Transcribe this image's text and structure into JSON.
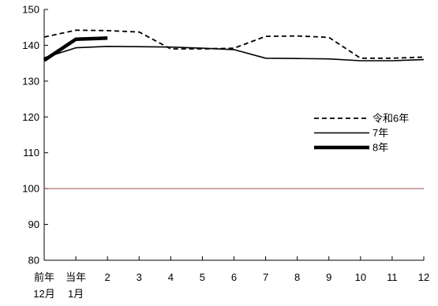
{
  "chart_data": {
    "type": "line",
    "title": "",
    "xlabel": "",
    "ylabel": "",
    "categories": [
      {
        "top": "前年",
        "bottom": "12月"
      },
      {
        "top": "当年",
        "bottom": "1月"
      },
      {
        "top": "2",
        "bottom": ""
      },
      {
        "top": "3",
        "bottom": ""
      },
      {
        "top": "4",
        "bottom": ""
      },
      {
        "top": "5",
        "bottom": ""
      },
      {
        "top": "6",
        "bottom": ""
      },
      {
        "top": "7",
        "bottom": ""
      },
      {
        "top": "8",
        "bottom": ""
      },
      {
        "top": "9",
        "bottom": ""
      },
      {
        "top": "10",
        "bottom": ""
      },
      {
        "top": "11",
        "bottom": ""
      },
      {
        "top": "12",
        "bottom": ""
      }
    ],
    "ylim": [
      80,
      150
    ],
    "yticks": [
      80,
      90,
      100,
      110,
      120,
      130,
      140,
      150
    ],
    "reference_line": {
      "value": 100,
      "color": "#a0524d"
    },
    "legend_position": "right",
    "grid": false,
    "series": [
      {
        "name": "令和6年",
        "style": "dashed",
        "color": "#000000",
        "values": [
          142.3,
          144.2,
          144.1,
          143.7,
          139.0,
          139.0,
          139.2,
          142.5,
          142.6,
          142.2,
          136.4,
          136.4,
          136.7
        ]
      },
      {
        "name": "7年",
        "style": "solid",
        "color": "#000000",
        "values": [
          136.5,
          139.3,
          139.7,
          139.6,
          139.5,
          139.2,
          138.8,
          136.4,
          136.3,
          136.2,
          135.7,
          135.7,
          136.0
        ]
      },
      {
        "name": "8年",
        "style": "bold",
        "color": "#000000",
        "values": [
          135.8,
          141.7,
          142.0,
          null,
          null,
          null,
          null,
          null,
          null,
          null,
          null,
          null,
          null
        ]
      }
    ]
  }
}
